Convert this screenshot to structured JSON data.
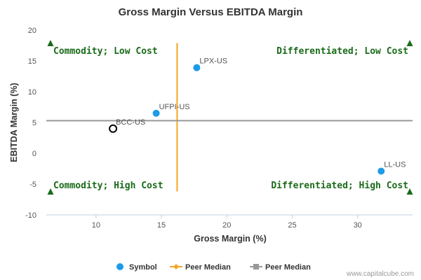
{
  "chart_data": {
    "type": "scatter",
    "title": "Gross Margin Versus EBITDA Margin",
    "xlabel": "Gross Margin (%)",
    "ylabel": "EBITDA Margin (%)",
    "xlim": [
      6.2,
      34.2
    ],
    "ylim": [
      -10,
      20
    ],
    "xticks": [
      10,
      15,
      20,
      25,
      30
    ],
    "yticks": [
      20,
      15,
      10,
      5,
      0,
      -5,
      -10
    ],
    "grid": false,
    "legend_placement": "bottom",
    "points": [
      {
        "label": "LPX-US",
        "x": 17.7,
        "y": 13.9,
        "style": "symbol"
      },
      {
        "label": "UFPI-US",
        "x": 14.6,
        "y": 6.5,
        "style": "symbol"
      },
      {
        "label": "BCC-US",
        "x": 11.3,
        "y": 4.0,
        "style": "highlight"
      },
      {
        "label": "LL-US",
        "x": 31.8,
        "y": -2.9,
        "style": "symbol"
      }
    ],
    "peer_median_x": 16.2,
    "peer_median_y": 5.3,
    "vline_range": [
      -6.2,
      17.9
    ],
    "quadrants": {
      "top_left": "Commodity; Low Cost",
      "top_right": "Differentiated; Low Cost",
      "bottom_left": "Commodity; High Cost",
      "bottom_right": "Differentiated; High Cost"
    },
    "legend": [
      {
        "name": "Symbol",
        "marker": "circle",
        "color": "#1e9be6"
      },
      {
        "name": "Peer Median",
        "marker": "diamond-line",
        "color": "#f5a623"
      },
      {
        "name": "Peer Median",
        "marker": "square-line",
        "color": "#999999"
      }
    ],
    "colors": {
      "symbol": "#1e9be6",
      "highlight_stroke": "#000000",
      "vline": "#f5a623",
      "hline": "#999999",
      "quadrant_text": "#1a6b1a",
      "triangle": "#1a6b1a"
    },
    "credit": "www.capitalcube.com"
  }
}
